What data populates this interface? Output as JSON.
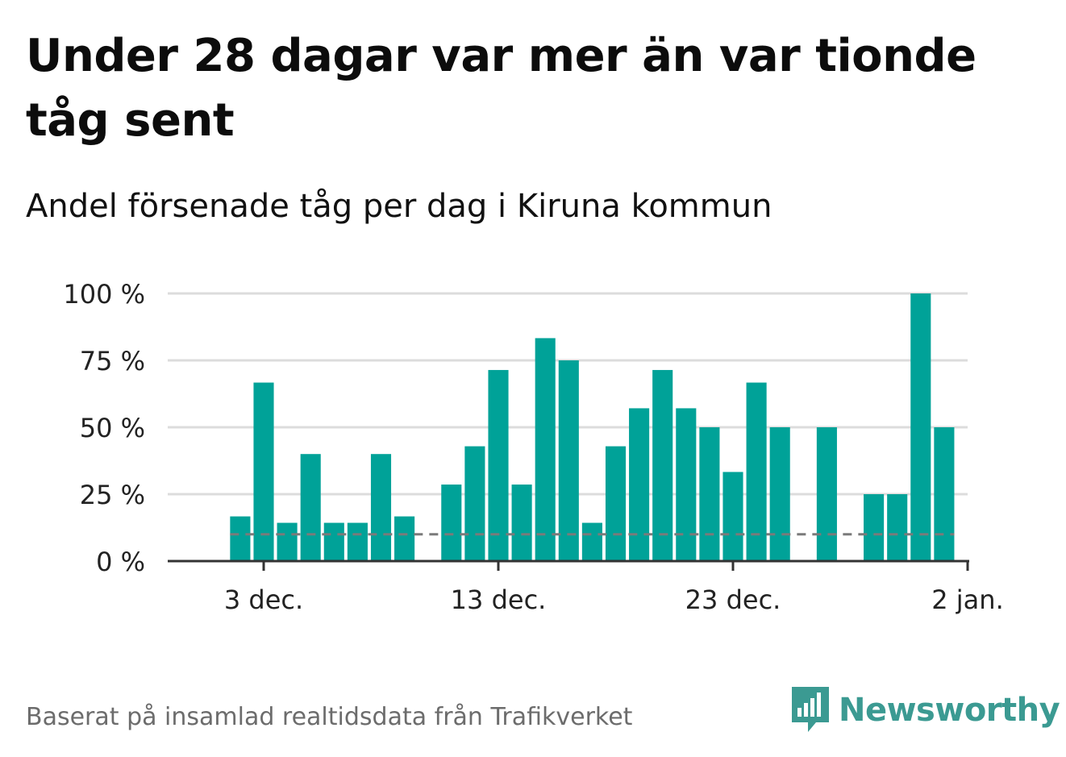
{
  "header": {
    "title": "Under 28 dagar var mer än var tionde tåg sent",
    "subtitle": "Andel försenade tåg per dag i Kiruna kommun"
  },
  "footer": {
    "source": "Baserat på insamlad realtidsdata från Trafikverket",
    "brand": "Newsworthy"
  },
  "colors": {
    "bar": "#00a298",
    "grid": "#dcdcdc",
    "axis": "#333333",
    "reference": "#7a7a7a",
    "brand": "#3b9a92"
  },
  "chart_data": {
    "type": "bar",
    "title": "Under 28 dagar var mer än var tionde tåg sent",
    "subtitle": "Andel försenade tåg per dag i Kiruna kommun",
    "xlabel": "",
    "ylabel": "",
    "ylim": [
      0,
      100
    ],
    "yticks": [
      0,
      25,
      50,
      75,
      100
    ],
    "ytick_labels": [
      "0 %",
      "25 %",
      "50 %",
      "75 %",
      "100 %"
    ],
    "xtick_labels": [
      "3 dec.",
      "13 dec.",
      "23 dec.",
      "2 jan."
    ],
    "xtick_dates": [
      "2023-12-03",
      "2023-12-13",
      "2023-12-23",
      "2024-01-02"
    ],
    "categories": [
      "2023-12-02",
      "2023-12-03",
      "2023-12-04",
      "2023-12-05",
      "2023-12-06",
      "2023-12-07",
      "2023-12-08",
      "2023-12-09",
      "2023-12-10",
      "2023-12-11",
      "2023-12-12",
      "2023-12-13",
      "2023-12-14",
      "2023-12-15",
      "2023-12-16",
      "2023-12-17",
      "2023-12-18",
      "2023-12-19",
      "2023-12-20",
      "2023-12-21",
      "2023-12-22",
      "2023-12-23",
      "2023-12-24",
      "2023-12-25",
      "2023-12-26",
      "2023-12-27",
      "2023-12-28",
      "2023-12-29",
      "2023-12-30",
      "2023-12-31",
      "2024-01-01"
    ],
    "values": [
      16.7,
      66.7,
      14.3,
      40,
      14.3,
      14.3,
      40,
      16.7,
      null,
      28.6,
      42.9,
      71.4,
      28.6,
      83.3,
      75,
      14.3,
      42.9,
      57.1,
      71.4,
      57.1,
      50,
      33.3,
      66.7,
      50,
      null,
      50,
      null,
      25,
      25,
      100,
      50
    ],
    "reference_line": {
      "value": 10,
      "style": "dashed"
    },
    "grid": true,
    "legend": "none"
  }
}
